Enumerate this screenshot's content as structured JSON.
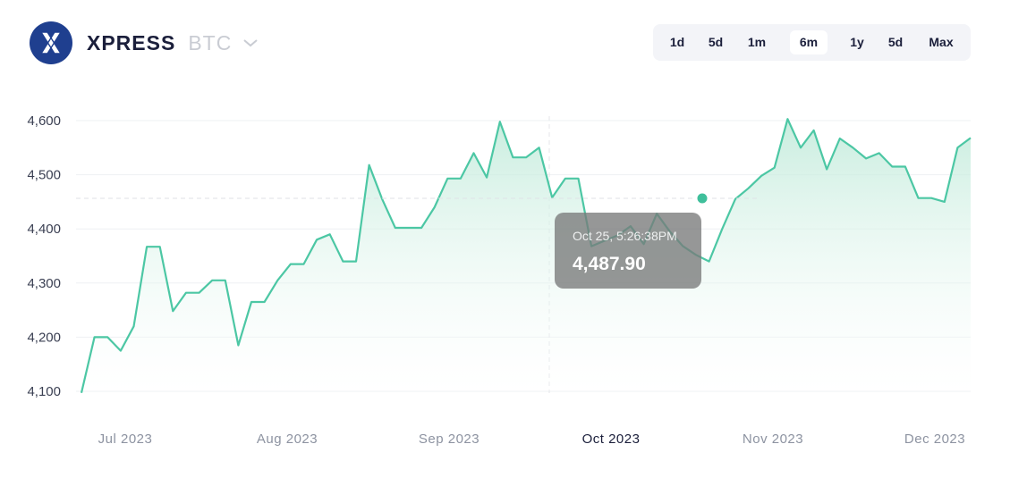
{
  "header": {
    "logo_icon": "x-logo-icon",
    "title": "XPRESS",
    "pair": "BTC",
    "dropdown_icon": "chevron-down-icon"
  },
  "ranges": {
    "items": [
      "1d",
      "5d",
      "1m",
      "6m",
      "1y",
      "5d",
      "Max"
    ],
    "active": "6m"
  },
  "tooltip": {
    "date": "Oct 25, 5:26:38PM",
    "value": "4,487.90"
  },
  "chart_data": {
    "type": "area",
    "y_ticks": [
      4100,
      4200,
      4300,
      4400,
      4500,
      4600
    ],
    "y_tick_labels": [
      "4,100",
      "4,200",
      "4,300",
      "4,400",
      "4,500",
      "4,600"
    ],
    "x_tick_labels": [
      "Jul 2023",
      "Aug 2023",
      "Sep 2023",
      "Oct 2023",
      "Nov 2023",
      "Dec 2023"
    ],
    "highlighted_x_label": "Oct 2023",
    "ylim": [
      4100,
      4600
    ],
    "grid": true,
    "line_color": "#4cc7a4",
    "fill_color": "#d8f3ea",
    "series": [
      {
        "values": [
          4097,
          4200,
          4200,
          4175,
          4220,
          4367,
          4367,
          4248,
          4282,
          4282,
          4305,
          4305,
          4185,
          4265,
          4265,
          4305,
          4335,
          4335,
          4380,
          4390,
          4340,
          4340,
          4518,
          4455,
          4402,
          4402,
          4402,
          4440,
          4493,
          4493,
          4540,
          4495,
          4598,
          4532,
          4532,
          4550,
          4458,
          4493,
          4493,
          4368,
          4378,
          4388,
          4405,
          4372,
          4428,
          4395,
          4368,
          4352,
          4340,
          4400,
          4455,
          4475,
          4498,
          4513,
          4603,
          4550,
          4582,
          4510,
          4567,
          4550,
          4530,
          4540,
          4515,
          4515,
          4457,
          4457,
          4450,
          4550,
          4568
        ]
      }
    ],
    "hover_value": 4487.9,
    "hover_date": "Oct 25, 5:26:38PM"
  }
}
